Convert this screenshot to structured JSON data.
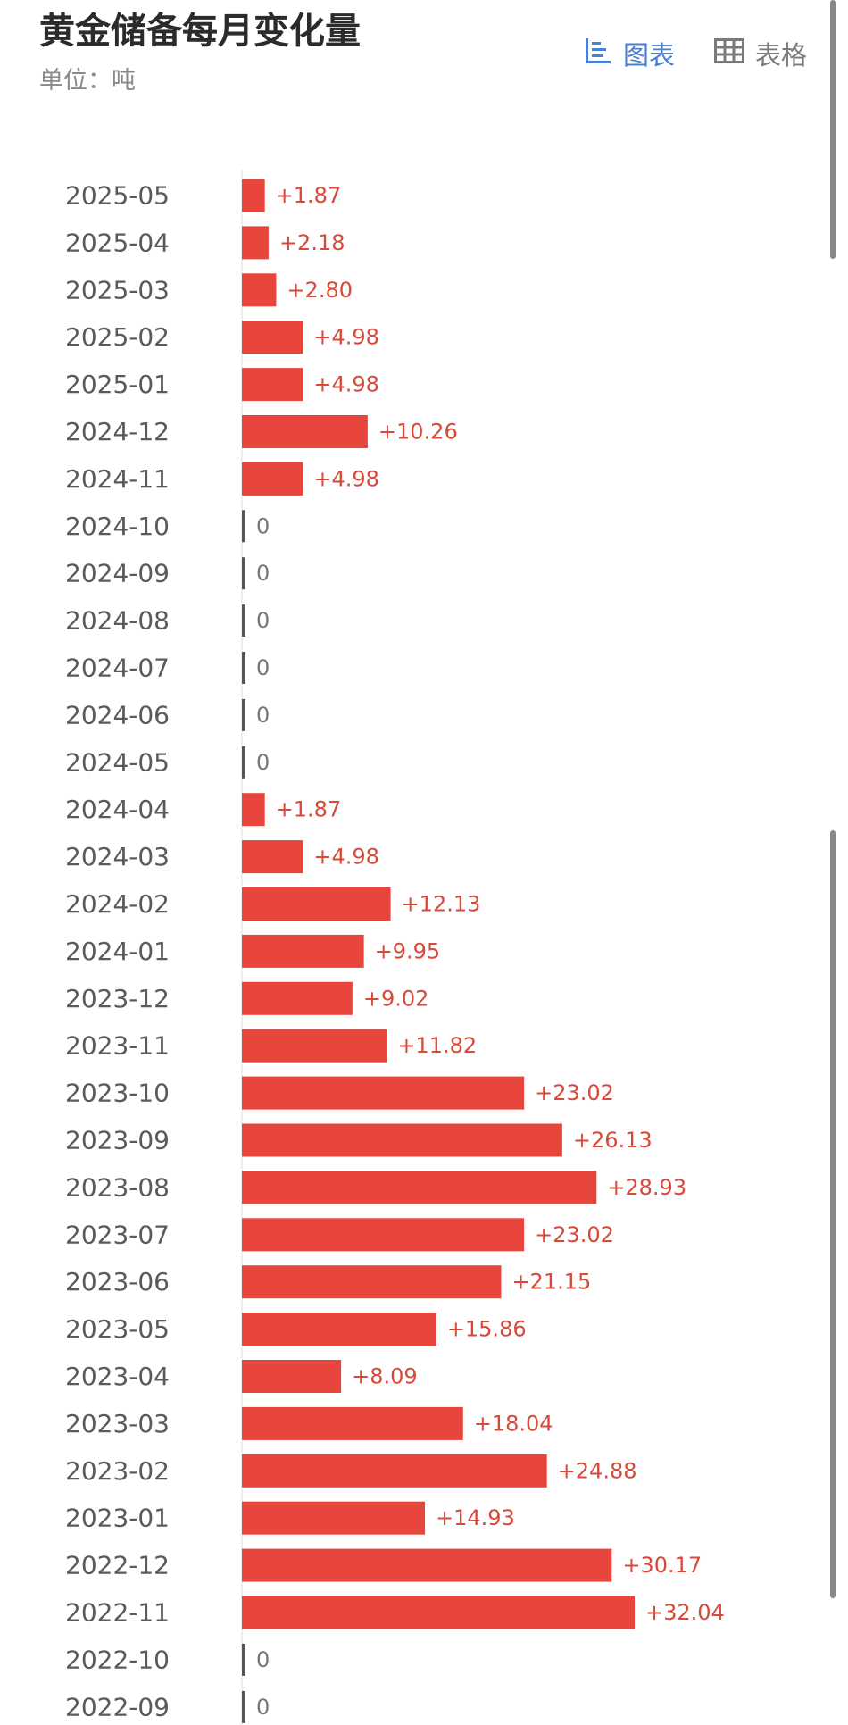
{
  "header": {
    "title": "黄金储备每月变化量",
    "unit": "单位：吨",
    "view_chart_label": "图表",
    "view_table_label": "表格"
  },
  "colors": {
    "bar": "#e8453c",
    "value_text": "#d8493a",
    "zero_text": "#777777",
    "zero_tick": "#555555",
    "accent": "#4a7fd6"
  },
  "icons": {
    "chart_toggle": "bar-chart-icon",
    "table_toggle": "table-grid-icon"
  },
  "chart_data": {
    "type": "bar",
    "orientation": "horizontal",
    "title": "黄金储备每月变化量",
    "unit": "吨",
    "xlim": [
      0,
      32.04
    ],
    "grid": false,
    "categories": [
      "2025-05",
      "2025-04",
      "2025-03",
      "2025-02",
      "2025-01",
      "2024-12",
      "2024-11",
      "2024-10",
      "2024-09",
      "2024-08",
      "2024-07",
      "2024-06",
      "2024-05",
      "2024-04",
      "2024-03",
      "2024-02",
      "2024-01",
      "2023-12",
      "2023-11",
      "2023-10",
      "2023-09",
      "2023-08",
      "2023-07",
      "2023-06",
      "2023-05",
      "2023-04",
      "2023-03",
      "2023-02",
      "2023-01",
      "2022-12",
      "2022-11",
      "2022-10",
      "2022-09"
    ],
    "values": [
      1.87,
      2.18,
      2.8,
      4.98,
      4.98,
      10.26,
      4.98,
      0,
      0,
      0,
      0,
      0,
      0,
      1.87,
      4.98,
      12.13,
      9.95,
      9.02,
      11.82,
      23.02,
      26.13,
      28.93,
      23.02,
      21.15,
      15.86,
      8.09,
      18.04,
      24.88,
      14.93,
      30.17,
      32.04,
      0,
      0
    ],
    "value_labels": [
      "+1.87",
      "+2.18",
      "+2.80",
      "+4.98",
      "+4.98",
      "+10.26",
      "+4.98",
      "0",
      "0",
      "0",
      "0",
      "0",
      "0",
      "+1.87",
      "+4.98",
      "+12.13",
      "+9.95",
      "+9.02",
      "+11.82",
      "+23.02",
      "+26.13",
      "+28.93",
      "+23.02",
      "+21.15",
      "+15.86",
      "+8.09",
      "+18.04",
      "+24.88",
      "+14.93",
      "+30.17",
      "+32.04",
      "0",
      "0"
    ]
  }
}
